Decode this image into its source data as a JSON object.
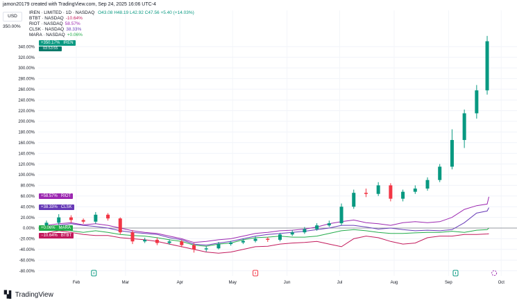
{
  "header": {
    "attribution": "jamon20179 created with TradingView.com, Sep 24, 2025 16:06 UTC-4",
    "currency": "USD",
    "axis_marker": "350.00%",
    "main_symbol": "IREN · LIMITED · 1D · NASDAQ",
    "ohlc": "O43.08  H48.19  L42.92  C47.56  +5.40 (+14.03%)"
  },
  "legend": [
    {
      "symbol": "BTBT · NASDAQ",
      "value": "-10.64%",
      "color": "#c2185b"
    },
    {
      "symbol": "RIOT · NASDAQ",
      "value": "58.57%",
      "color": "#9c27b0"
    },
    {
      "symbol": "CLSK · NASDAQ",
      "value": "38.33%",
      "color": "#673ab7"
    },
    {
      "symbol": "MARA · NASDAQ",
      "value": "+0.06%",
      "color": "#22ab4a"
    }
  ],
  "price_labels": {
    "iren": {
      "value": "+350.17%",
      "ticker": "IREN",
      "countdown": "03:53:55",
      "color": "#089981"
    },
    "riot": {
      "value": "+58.57%",
      "ticker": "RIOT",
      "color": "#9c27b0"
    },
    "clsk": {
      "value": "+38.33%",
      "ticker": "CLSK",
      "color": "#673ab7"
    },
    "mara": {
      "value": "+0.06%",
      "ticker": "MARA",
      "color": "#22ab4a"
    },
    "btbt": {
      "value": "−10.64%",
      "ticker": "BTBT",
      "color": "#c2185b"
    }
  },
  "branding": {
    "logo_mark": "17",
    "name": "TradingView"
  },
  "chart_data": {
    "type": "candlestick+line",
    "yaxis": {
      "scale": "percent",
      "ylim": [
        -90,
        360
      ],
      "ticks": [
        -80,
        -60,
        -40,
        -20,
        0,
        20,
        40,
        60,
        80,
        100,
        120,
        140,
        160,
        180,
        200,
        220,
        240,
        260,
        280,
        300,
        320,
        340
      ],
      "tick_format": "{v}.00%",
      "grid": true,
      "position": "left"
    },
    "xaxis": {
      "tick_labels": [
        "Feb",
        "Mar",
        "Apr",
        "May",
        "Jun",
        "Jul",
        "Aug",
        "Sep",
        "Oct"
      ],
      "tick_dates": [
        "2025-02-01",
        "2025-03-01",
        "2025-04-01",
        "2025-05-01",
        "2025-06-01",
        "2025-07-01",
        "2025-08-01",
        "2025-09-01",
        "2025-10-01"
      ]
    },
    "baseline": 0,
    "up_color": "#089981",
    "down_color": "#f23645",
    "dates": [
      "2025-01-15",
      "2025-01-22",
      "2025-01-29",
      "2025-02-05",
      "2025-02-12",
      "2025-02-19",
      "2025-02-26",
      "2025-03-05",
      "2025-03-12",
      "2025-03-19",
      "2025-03-26",
      "2025-04-02",
      "2025-04-09",
      "2025-04-16",
      "2025-04-23",
      "2025-04-30",
      "2025-05-07",
      "2025-05-14",
      "2025-05-21",
      "2025-05-28",
      "2025-06-04",
      "2025-06-11",
      "2025-06-18",
      "2025-06-25",
      "2025-07-02",
      "2025-07-09",
      "2025-07-16",
      "2025-07-23",
      "2025-07-30",
      "2025-08-06",
      "2025-08-13",
      "2025-08-20",
      "2025-08-27",
      "2025-09-03",
      "2025-09-10",
      "2025-09-17",
      "2025-09-23"
    ],
    "candles_ohlc": [
      [
        0,
        14,
        -4,
        10
      ],
      [
        10,
        26,
        6,
        20
      ],
      [
        20,
        24,
        10,
        15
      ],
      [
        15,
        18,
        8,
        12
      ],
      [
        12,
        30,
        8,
        25
      ],
      [
        25,
        28,
        14,
        18
      ],
      [
        18,
        20,
        -12,
        -8
      ],
      [
        -8,
        -4,
        -30,
        -25
      ],
      [
        -25,
        -18,
        -28,
        -22
      ],
      [
        -22,
        -18,
        -32,
        -28
      ],
      [
        -28,
        -21,
        -31,
        -25
      ],
      [
        -25,
        -22,
        -36,
        -32
      ],
      [
        -32,
        -28,
        -46,
        -40
      ],
      [
        -40,
        -34,
        -44,
        -38
      ],
      [
        -38,
        -26,
        -40,
        -30
      ],
      [
        -30,
        -24,
        -33,
        -27
      ],
      [
        -27,
        -20,
        -30,
        -24
      ],
      [
        -24,
        -16,
        -27,
        -20
      ],
      [
        -20,
        -17,
        -26,
        -22
      ],
      [
        -22,
        -9,
        -25,
        -12
      ],
      [
        -12,
        -4,
        -15,
        -8
      ],
      [
        -8,
        2,
        -11,
        -2
      ],
      [
        -2,
        9,
        -5,
        5
      ],
      [
        5,
        14,
        2,
        9
      ],
      [
        9,
        46,
        5,
        40
      ],
      [
        40,
        72,
        36,
        66
      ],
      [
        66,
        74,
        58,
        64
      ],
      [
        64,
        86,
        60,
        80
      ],
      [
        80,
        84,
        50,
        55
      ],
      [
        55,
        72,
        50,
        68
      ],
      [
        68,
        80,
        64,
        74
      ],
      [
        74,
        95,
        70,
        90
      ],
      [
        90,
        120,
        86,
        115
      ],
      [
        115,
        185,
        110,
        165
      ],
      [
        165,
        222,
        150,
        215
      ],
      [
        215,
        268,
        205,
        258
      ],
      [
        258,
        360,
        250,
        350
      ]
    ],
    "series": [
      {
        "name": "RIOT",
        "color": "#9c27b0",
        "values": [
          5,
          8,
          10,
          6,
          8,
          5,
          0,
          -5,
          -8,
          -10,
          -15,
          -20,
          -27,
          -25,
          -22,
          -20,
          -15,
          -10,
          -8,
          -5,
          -4,
          -2,
          2,
          8,
          12,
          15,
          10,
          8,
          5,
          10,
          12,
          10,
          12,
          20,
          35,
          42,
          45
        ],
        "last": 58.57
      },
      {
        "name": "CLSK",
        "color": "#673ab7",
        "values": [
          3,
          5,
          8,
          5,
          3,
          0,
          -5,
          -8,
          -10,
          -12,
          -18,
          -22,
          -30,
          -32,
          -28,
          -25,
          -20,
          -15,
          -12,
          -10,
          -8,
          -6,
          -3,
          0,
          5,
          5,
          2,
          -2,
          0,
          -3,
          -5,
          -4,
          -5,
          -3,
          10,
          28,
          32
        ],
        "last": 38.33
      },
      {
        "name": "MARA",
        "color": "#22ab4a",
        "values": [
          0,
          2,
          -5,
          -8,
          -5,
          -8,
          -12,
          -14,
          -15,
          -18,
          -22,
          -25,
          -32,
          -34,
          -30,
          -28,
          -22,
          -18,
          -17,
          -15,
          -17,
          -17,
          -15,
          -10,
          -5,
          -3,
          -5,
          -8,
          -10,
          -10,
          -9,
          -8,
          -8,
          -6,
          -8,
          -4,
          -3
        ],
        "last": 0.06
      },
      {
        "name": "BTBT",
        "color": "#c2185b",
        "values": [
          -10,
          -5,
          -8,
          -12,
          -14,
          -14,
          -18,
          -20,
          -22,
          -25,
          -30,
          -35,
          -40,
          -45,
          -47,
          -45,
          -40,
          -35,
          -34,
          -30,
          -28,
          -27,
          -25,
          -30,
          -35,
          -20,
          -15,
          -18,
          -25,
          -30,
          -28,
          -18,
          -15,
          -15,
          -12,
          -12,
          -11
        ],
        "last": -10.64
      }
    ],
    "events": [
      {
        "date": "2025-02-11",
        "type": "earnings",
        "color": "#089981"
      },
      {
        "date": "2025-05-14",
        "type": "earnings",
        "color": "#f23645"
      },
      {
        "date": "2025-09-05",
        "type": "earnings",
        "color": "#089981"
      },
      {
        "date": "2025-09-27",
        "type": "upcoming",
        "color": "#9c27b0"
      }
    ]
  }
}
